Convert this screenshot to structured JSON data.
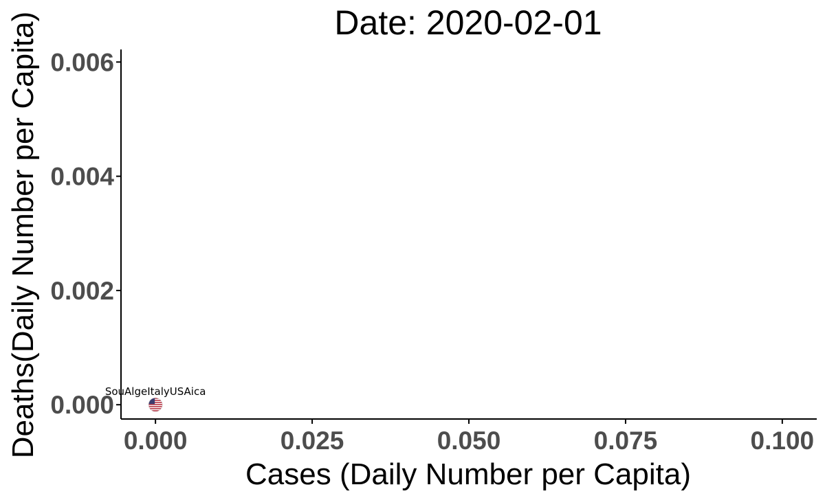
{
  "chart_data": {
    "type": "scatter",
    "title": "Date: 2020-02-01",
    "xlabel": "Cases (Daily Number per Capita)",
    "ylabel": "Deaths(Daily Number per Capita)",
    "xlim": [
      -0.0055,
      0.1055
    ],
    "ylim": [
      -0.00025,
      0.00622
    ],
    "x_ticks": [
      0.0,
      0.025,
      0.05,
      0.075,
      0.1
    ],
    "x_tick_labels": [
      "0.000",
      "0.025",
      "0.050",
      "0.075",
      "0.100"
    ],
    "y_ticks": [
      0.0,
      0.002,
      0.004,
      0.006
    ],
    "y_tick_labels": [
      "0.000",
      "0.002",
      "0.004",
      "0.006"
    ],
    "grid": false,
    "legend": "none",
    "points": [
      {
        "label": "South Africa",
        "x": 0.0,
        "y": 0.0,
        "marker": "flag-icon",
        "color": "#b22234"
      },
      {
        "label": "Algeria",
        "x": 0.0,
        "y": 0.0,
        "marker": "flag-icon",
        "color": "#b22234"
      },
      {
        "label": "Italy",
        "x": 0.0,
        "y": 0.0,
        "marker": "flag-icon",
        "color": "#b22234"
      },
      {
        "label": "USA",
        "x": 0.0,
        "y": 0.0,
        "marker": "flag-icon",
        "color": "#b22234"
      }
    ],
    "point_label_text": "SouΑlgeItalyUSAica",
    "colors": {
      "axis": "#000000",
      "tick_text": "#4d4d4d",
      "flag_red": "#b22234",
      "flag_blue": "#3c3b6e"
    }
  }
}
